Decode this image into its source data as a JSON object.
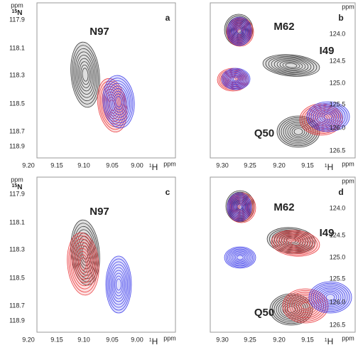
{
  "panels": [
    {
      "label": "a",
      "peaks": [
        "N97"
      ],
      "x_label": {
        "isotope": "1",
        "nucleus": "H"
      },
      "x_unit": "ppm",
      "y_label": {
        "isotope": "15",
        "nucleus": "N"
      },
      "y_unit": "ppm",
      "xticks": [
        "9.20",
        "9.15",
        "9.10",
        "9.05",
        "9.00"
      ],
      "yticks": [
        "117.9",
        "118.1",
        "118.3",
        "118.5",
        "118.7",
        "118.9"
      ]
    },
    {
      "label": "b",
      "peaks": [
        "M62",
        "I49",
        "Q50"
      ],
      "x_label": {
        "isotope": "1",
        "nucleus": "H"
      },
      "x_unit": "ppm",
      "y_unit": "ppm",
      "xticks": [
        "9.30",
        "9.25",
        "9.20",
        "9.15"
      ],
      "yticks": [
        "124.0",
        "124.5",
        "125.0",
        "125.5",
        "126.0",
        "126.5"
      ]
    },
    {
      "label": "c",
      "peaks": [
        "N97"
      ],
      "x_label": {
        "isotope": "1",
        "nucleus": "H"
      },
      "x_unit": "ppm",
      "y_label": {
        "isotope": "15",
        "nucleus": "N"
      },
      "y_unit": "ppm",
      "xticks": [
        "9.20",
        "9.15",
        "9.10",
        "9.05",
        "9.00"
      ],
      "yticks": [
        "117.9",
        "118.1",
        "118.3",
        "118.5",
        "118.7",
        "118.9"
      ]
    },
    {
      "label": "d",
      "peaks": [
        "M62",
        "I49",
        "Q50"
      ],
      "x_label": {
        "isotope": "1",
        "nucleus": "H"
      },
      "x_unit": "ppm",
      "y_unit": "ppm",
      "xticks": [
        "9.30",
        "9.25",
        "9.20",
        "9.15"
      ],
      "yticks": [
        "124.0",
        "124.5",
        "125.0",
        "125.5",
        "126.0",
        "126.5"
      ]
    }
  ]
}
